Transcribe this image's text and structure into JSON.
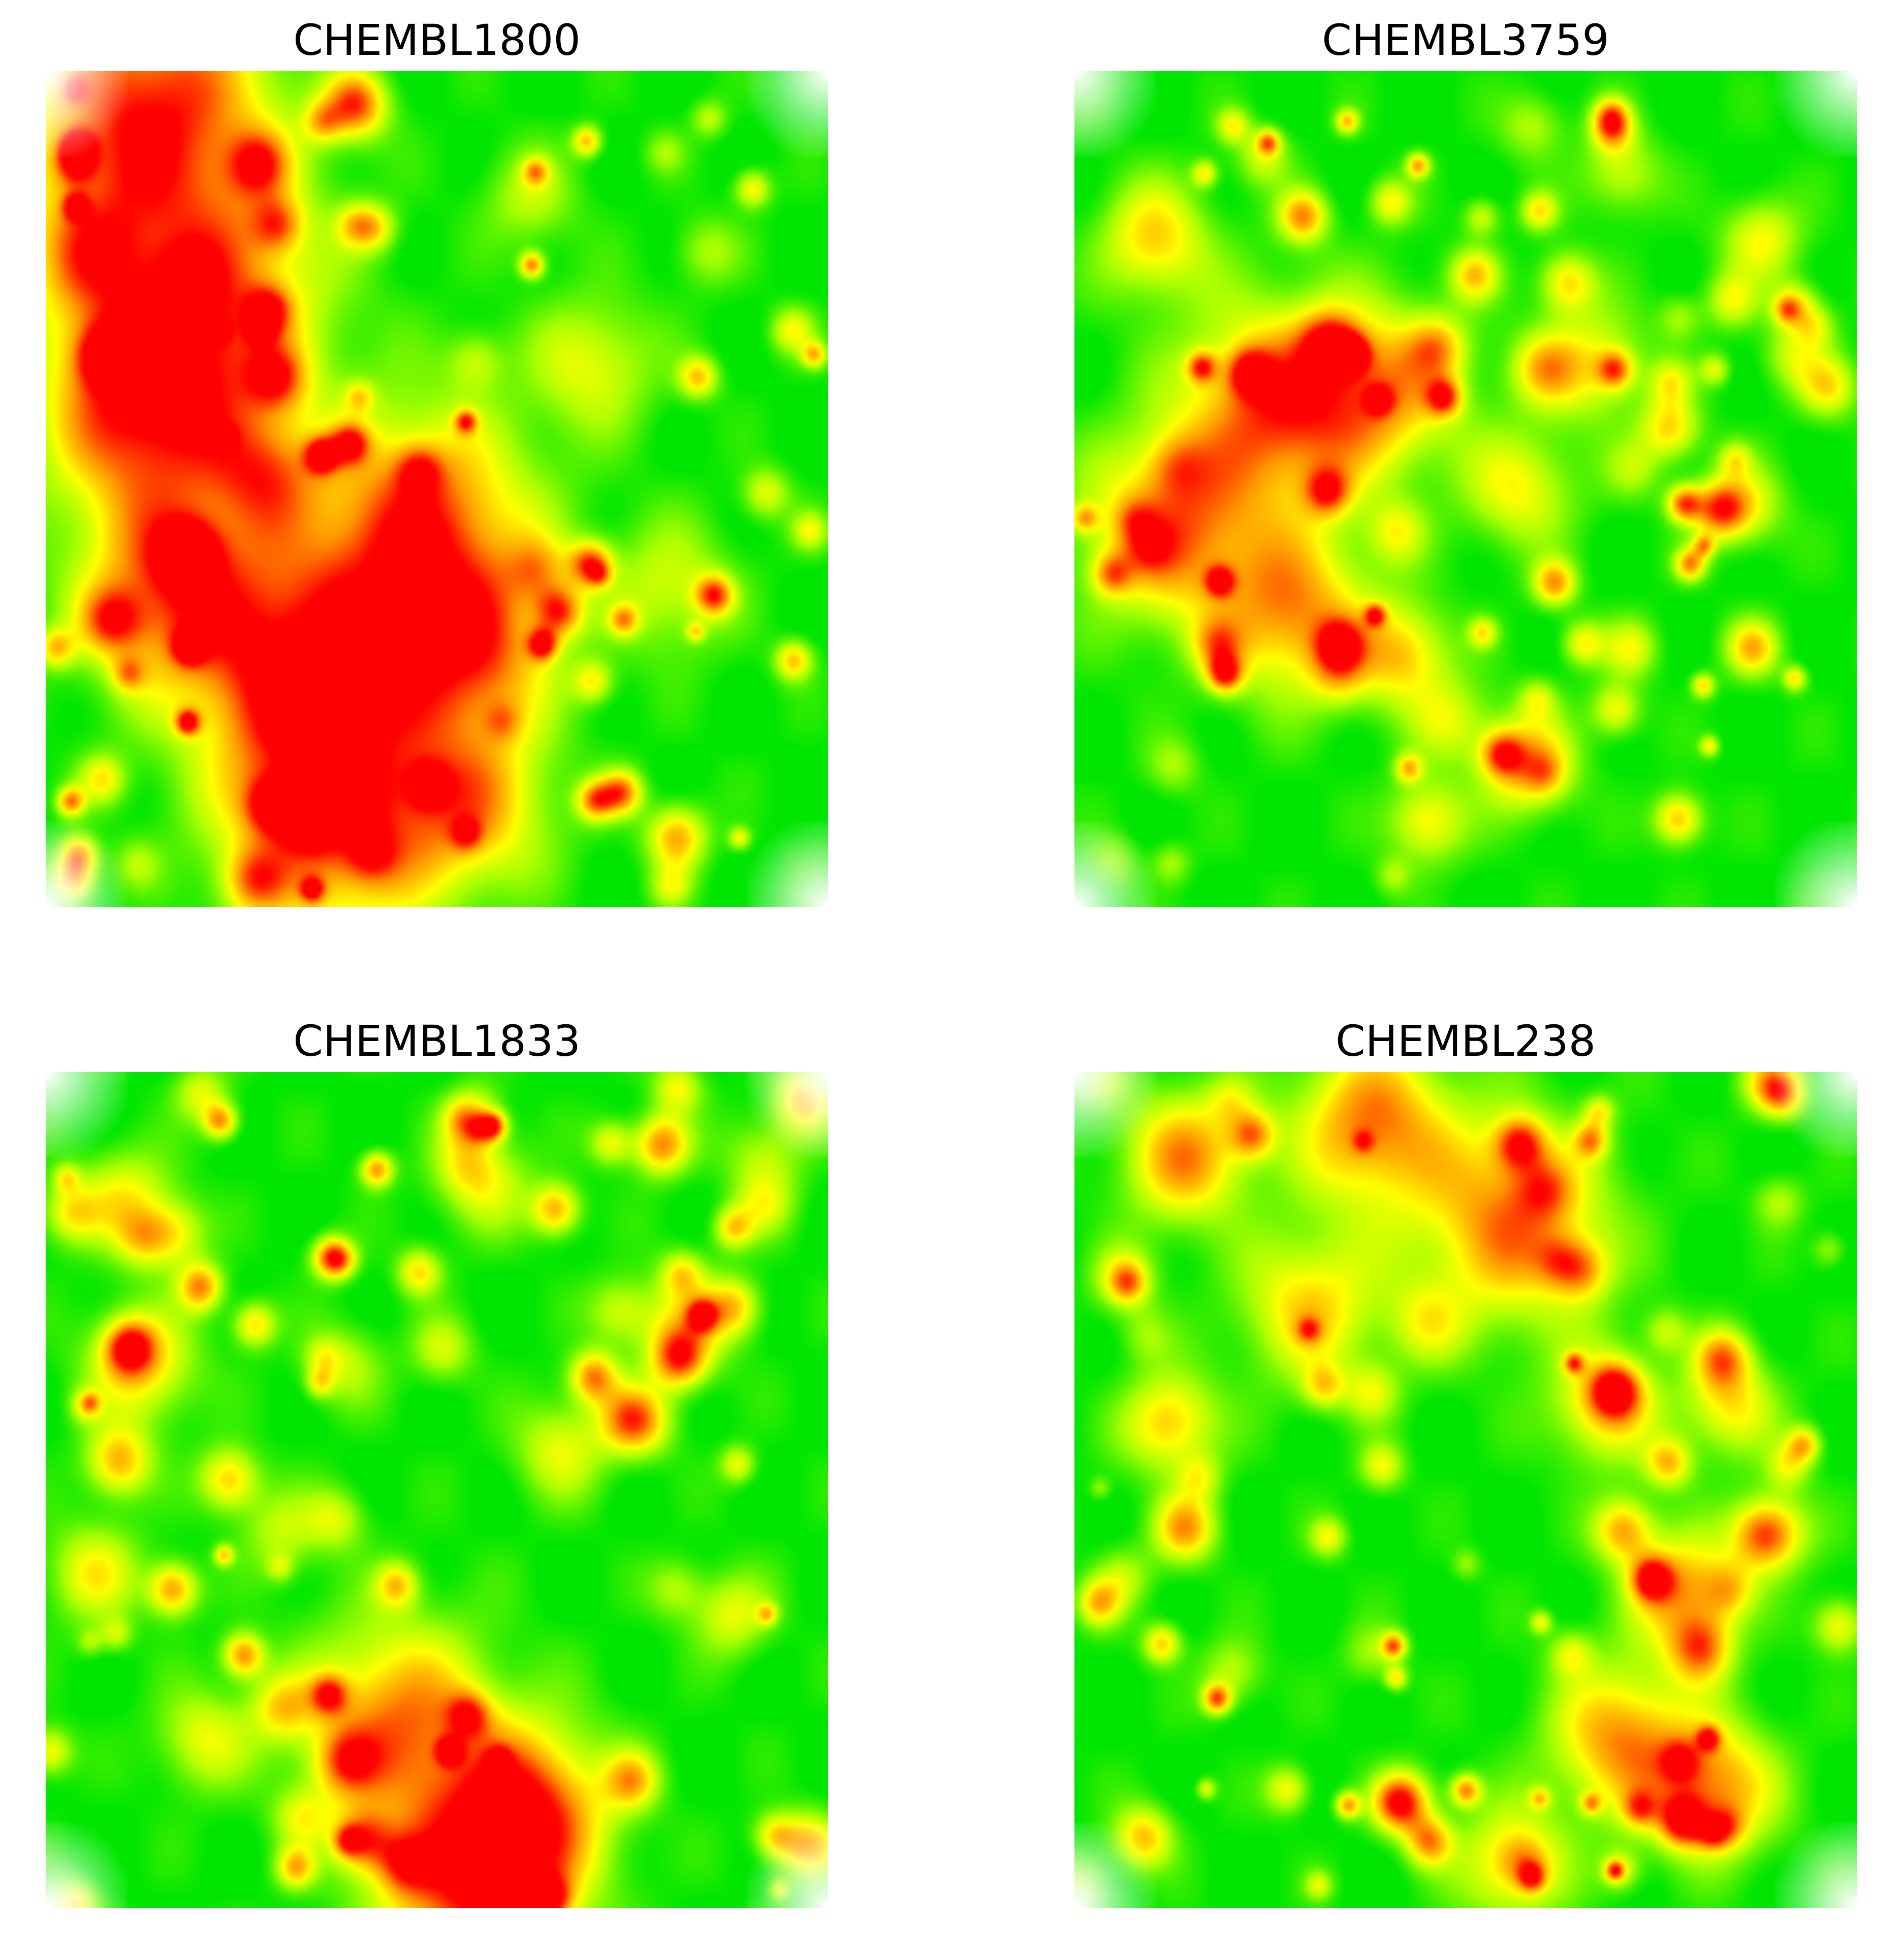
{
  "figure": {
    "colors": {
      "low": "#00e600",
      "mid_low": "#b5ff00",
      "mid": "#ffff00",
      "mid_high": "#ff9a00",
      "high": "#ff0000",
      "background": "#ffffff"
    }
  },
  "chart_data": [
    {
      "type": "heatmap",
      "title": "CHEMBL1800",
      "colormap": [
        "green",
        "yellow",
        "orange",
        "red"
      ],
      "axes": "off",
      "grid": false,
      "dominant_region": "red/orange across left and center; green on right edge; red patch top-left"
    },
    {
      "type": "heatmap",
      "title": "CHEMBL3759",
      "colormap": [
        "green",
        "yellow",
        "orange",
        "red"
      ],
      "axes": "off",
      "grid": false,
      "dominant_region": "mostly green; red/orange cluster center-left"
    },
    {
      "type": "heatmap",
      "title": "CHEMBL1833",
      "colormap": [
        "green",
        "yellow",
        "orange",
        "red"
      ],
      "axes": "off",
      "grid": false,
      "dominant_region": "mostly green with scattered yellow; red patch bottom-center"
    },
    {
      "type": "heatmap",
      "title": "CHEMBL238",
      "colormap": [
        "green",
        "yellow",
        "orange",
        "red"
      ],
      "axes": "off",
      "grid": false,
      "dominant_region": "mostly green; red/orange at top band and lower-right"
    }
  ]
}
